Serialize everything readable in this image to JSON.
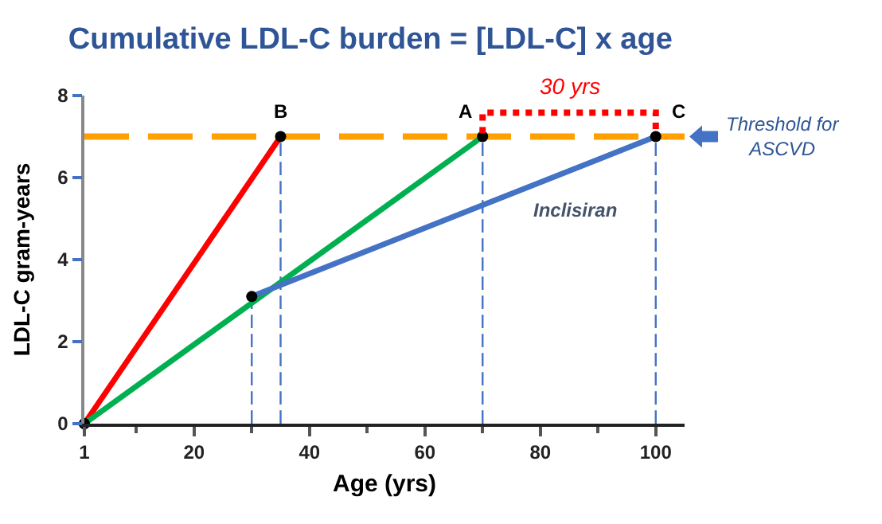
{
  "chart_data": {
    "type": "line",
    "title": "Cumulative LDL-C burden = [LDL-C] x age",
    "xlabel": "Age (yrs)",
    "ylabel": "LDL-C gram-years",
    "series": [
      {
        "color": "#ff0000",
        "x": [
          1,
          35
        ],
        "values": [
          0,
          7
        ]
      },
      {
        "color": "#00b050",
        "x": [
          1,
          70
        ],
        "values": [
          0,
          7
        ]
      },
      {
        "name": "Inclisiran",
        "color": "#4472c4",
        "x": [
          30,
          100
        ],
        "values": [
          3.1,
          7
        ]
      }
    ],
    "xlim": [
      1,
      105
    ],
    "xticks": [
      1,
      {
        "value": 10,
        "label": null
      },
      20,
      {
        "value": 30,
        "label": null
      },
      40,
      {
        "value": 50,
        "label": null
      },
      60,
      {
        "value": 70,
        "label": null
      },
      80,
      {
        "value": 90,
        "label": null
      },
      100
    ],
    "ylim": [
      0,
      8
    ],
    "yticks": [
      0,
      2,
      4,
      6,
      8
    ],
    "ref_lines": [
      {
        "axis": "y",
        "value": 7,
        "label": "Threshold for\nASCVD",
        "color": "#ffa000",
        "line_style": "dashed"
      },
      {
        "axis": "x",
        "value": 30,
        "color": "#4472c4",
        "line_style": "dashed"
      },
      {
        "axis": "x",
        "value": 35,
        "color": "#4472c4",
        "line_style": "dashed"
      },
      {
        "axis": "x",
        "value": 70,
        "color": "#4472c4",
        "line_style": "dashed"
      },
      {
        "axis": "x",
        "value": 100,
        "color": "#4472c4",
        "line_style": "dashed"
      }
    ],
    "annotations": [
      {
        "text": "B",
        "x": 35,
        "y": 7
      },
      {
        "text": "A",
        "x": 70,
        "y": 7
      },
      {
        "text": "C",
        "x": 100,
        "y": 7
      },
      {
        "text": "30 yrs",
        "x": 85,
        "y": 7
      }
    ],
    "marker": "circle",
    "line_style": "solid",
    "grid": false,
    "legend": false
  }
}
